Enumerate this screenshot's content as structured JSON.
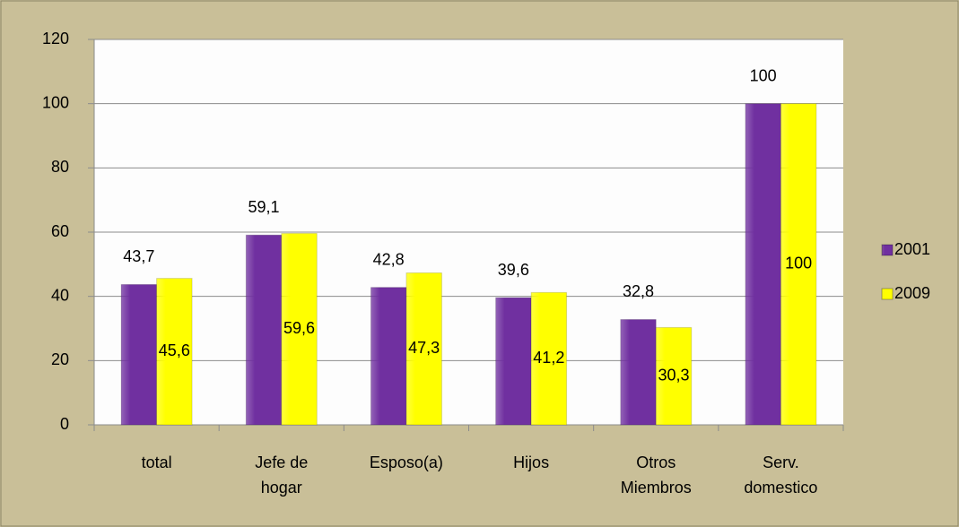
{
  "chart_data": {
    "type": "bar",
    "categories": [
      "total",
      "Jefe de\nhogar",
      "Esposo(a)",
      "Hijos",
      "Otros\nMiembros",
      "Serv.\ndomestico"
    ],
    "series": [
      {
        "name": "2001",
        "color": "#7030a0",
        "values": [
          43.7,
          59.1,
          42.8,
          39.6,
          32.8,
          100
        ],
        "value_labels": [
          "43,7",
          "59,1",
          "42,8",
          "39,6",
          "32,8",
          "100"
        ]
      },
      {
        "name": "2009",
        "color": "#ffff00",
        "values": [
          45.6,
          59.6,
          47.3,
          41.2,
          30.3,
          100
        ],
        "value_labels": [
          "45,6",
          "59,6",
          "47,3",
          "41,2",
          "30,3",
          "100"
        ]
      }
    ],
    "ylim": [
      0,
      120
    ],
    "yticks": [
      0,
      20,
      40,
      60,
      80,
      100,
      120
    ],
    "grid": true,
    "legend": "right"
  }
}
